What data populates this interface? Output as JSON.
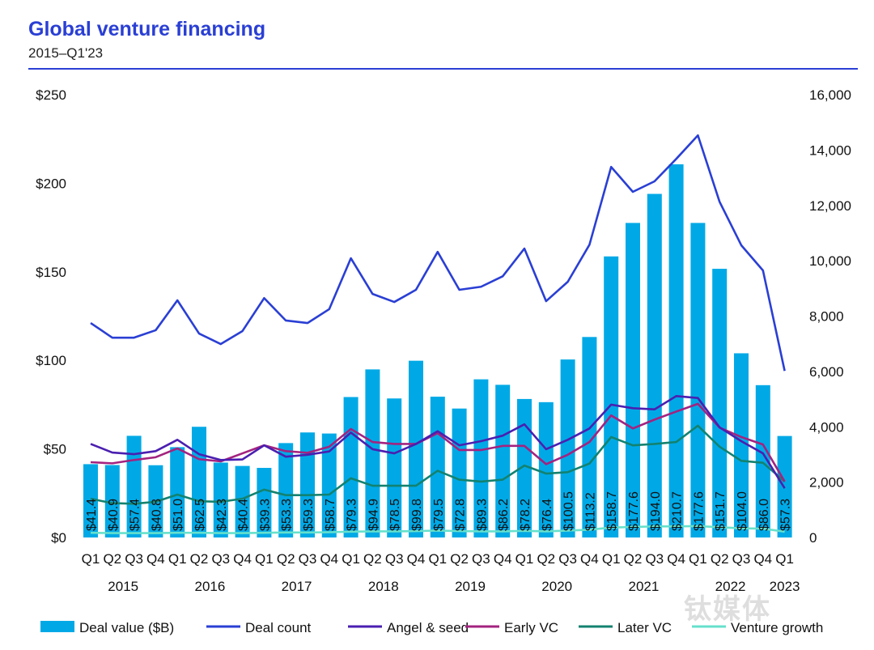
{
  "title": "Global venture financing",
  "subtitle": "2015–Q1'23",
  "watermark": "钛媒体",
  "chart_data": {
    "type": "bar",
    "title": "Global venture financing",
    "subtitle": "2015–Q1'23",
    "quarters": [
      "Q1",
      "Q2",
      "Q3",
      "Q4",
      "Q1",
      "Q2",
      "Q3",
      "Q4",
      "Q1",
      "Q2",
      "Q3",
      "Q4",
      "Q1",
      "Q2",
      "Q3",
      "Q4",
      "Q1",
      "Q2",
      "Q3",
      "Q4",
      "Q1",
      "Q2",
      "Q3",
      "Q4",
      "Q1",
      "Q2",
      "Q3",
      "Q4",
      "Q1",
      "Q2",
      "Q3",
      "Q4",
      "Q1"
    ],
    "years": [
      "2015",
      "2016",
      "2017",
      "2018",
      "2019",
      "2020",
      "2021",
      "2022",
      "2023"
    ],
    "left_axis": {
      "ticks": [
        "$0",
        "$50",
        "$100",
        "$150",
        "$200",
        "$250"
      ],
      "range": [
        0,
        250
      ]
    },
    "right_axis": {
      "ticks": [
        "0",
        "2,000",
        "4,000",
        "6,000",
        "8,000",
        "10,000",
        "12,000",
        "14,000",
        "16,000"
      ],
      "range": [
        0,
        16000
      ]
    },
    "legend_position": "bottom",
    "grid": false,
    "series": [
      {
        "name": "Deal value ($B)",
        "type": "bar",
        "axis": "left",
        "color": "#00a9e6",
        "values": [
          41.4,
          40.9,
          57.4,
          40.8,
          51.0,
          62.5,
          42.3,
          40.4,
          39.3,
          53.3,
          59.3,
          58.7,
          79.3,
          94.9,
          78.5,
          99.8,
          79.5,
          72.8,
          89.3,
          86.2,
          78.2,
          76.4,
          100.5,
          113.2,
          158.7,
          177.6,
          194.0,
          210.7,
          177.6,
          151.7,
          104.0,
          86.0,
          57.3
        ],
        "labels": [
          "$41.4",
          "$40.9",
          "$57.4",
          "$40.8",
          "$51.0",
          "$62.5",
          "$42.3",
          "$40.4",
          "$39.3",
          "$53.3",
          "$59.3",
          "$58.7",
          "$79.3",
          "$94.9",
          "$78.5",
          "$99.8",
          "$79.5",
          "$72.8",
          "$89.3",
          "$86.2",
          "$78.2",
          "$76.4",
          "$100.5",
          "$113.2",
          "$158.7",
          "$177.6",
          "$194.0",
          "$210.7",
          "$177.6",
          "$151.7",
          "$104.0",
          "$86.0",
          "$57.3"
        ]
      },
      {
        "name": "Deal count",
        "type": "line",
        "axis": "right",
        "color": "#2a3fd4",
        "values": [
          7750,
          7220,
          7220,
          7490,
          8570,
          7370,
          6990,
          7460,
          8650,
          7840,
          7750,
          8250,
          10090,
          8800,
          8510,
          8950,
          10320,
          8950,
          9060,
          9440,
          10440,
          8540,
          9240,
          10580,
          13390,
          12490,
          12870,
          13680,
          14530,
          12130,
          10560,
          9650,
          6020
        ]
      },
      {
        "name": "Angel & seed",
        "type": "line",
        "axis": "right",
        "color": "#4a1fb0",
        "values": [
          3380,
          3070,
          3010,
          3120,
          3530,
          3010,
          2800,
          2820,
          3330,
          2920,
          2990,
          3110,
          3790,
          3190,
          3040,
          3380,
          3840,
          3330,
          3480,
          3680,
          4090,
          3190,
          3530,
          3940,
          4800,
          4670,
          4630,
          5110,
          5040,
          3980,
          3480,
          3040,
          1780
        ]
      },
      {
        "name": "Early VC",
        "type": "line",
        "axis": "right",
        "color": "#a3237f",
        "values": [
          2720,
          2680,
          2800,
          2900,
          3220,
          2830,
          2750,
          3040,
          3330,
          3120,
          3060,
          3280,
          3920,
          3450,
          3380,
          3380,
          3770,
          3160,
          3160,
          3310,
          3310,
          2650,
          2990,
          3450,
          4410,
          3940,
          4260,
          4550,
          4830,
          3970,
          3630,
          3360,
          2020
        ]
      },
      {
        "name": "Later VC",
        "type": "line",
        "axis": "right",
        "color": "#138270",
        "values": [
          1400,
          1240,
          1220,
          1290,
          1550,
          1310,
          1290,
          1400,
          1730,
          1530,
          1530,
          1550,
          2140,
          1870,
          1870,
          1870,
          2410,
          2090,
          2020,
          2090,
          2600,
          2310,
          2360,
          2670,
          3630,
          3330,
          3380,
          3450,
          4040,
          3280,
          2770,
          2700,
          2020
        ]
      },
      {
        "name": "Venture growth",
        "type": "line",
        "axis": "right",
        "color": "#66e0cc",
        "values": [
          170,
          160,
          160,
          160,
          170,
          170,
          160,
          160,
          170,
          180,
          180,
          190,
          210,
          220,
          220,
          230,
          250,
          230,
          220,
          220,
          240,
          220,
          250,
          280,
          360,
          380,
          400,
          400,
          410,
          370,
          330,
          320,
          210
        ]
      }
    ]
  }
}
